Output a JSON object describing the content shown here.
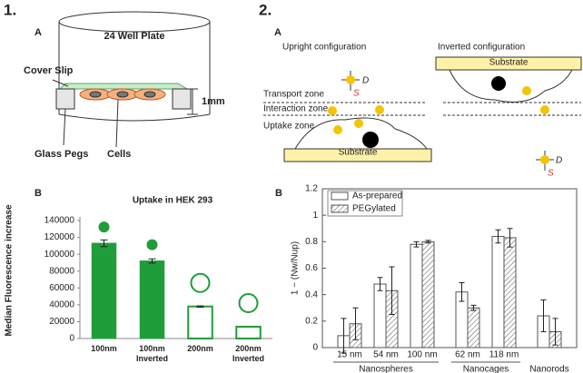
{
  "panel1": {
    "label": "1.",
    "A": {
      "label": "A",
      "plate": "24 Well Plate",
      "cover_slip": "Cover Slip",
      "height": "1mm",
      "pegs": "Glass Pegs",
      "cells": "Cells"
    }
  },
  "panel2": {
    "label": "2.",
    "A": {
      "label": "A",
      "upright": "Upright configuration",
      "inverted": "Inverted configuration",
      "substrate_upright": "Substrate",
      "substrate_inverted": "Substrate",
      "transport": "Transport zone",
      "interaction": "Interaction zone",
      "uptake": "Uptake zone",
      "d_upright": "D",
      "s_upright": "S",
      "d_inverted": "D",
      "s_inverted": "S"
    }
  },
  "chart_data": [
    {
      "type": "bar",
      "panel": "B",
      "title": "Uptake in HEK 293",
      "y_label": "Median Fluorescence increase",
      "categories": [
        "100nm",
        "100nm Inverted",
        "200nm",
        "200nm Inverted"
      ],
      "values": [
        113000,
        92000,
        38000,
        14000
      ],
      "errors": [
        4000,
        2500,
        800,
        null
      ],
      "color": "#1f9d3a",
      "fills": [
        "solid",
        "solid",
        "outline",
        "outline"
      ],
      "ylim": [
        0,
        140000
      ],
      "yticks": [
        0,
        20000,
        40000,
        60000,
        80000,
        100000,
        120000,
        140000
      ]
    },
    {
      "type": "grouped_bar",
      "panel": "B",
      "y_label": "1 − (Nw/Nup)",
      "groups": [
        {
          "name": "Nanospheres",
          "categories": [
            "15 nm",
            "54 nm",
            "100 nm"
          ]
        },
        {
          "name": "Nanocages",
          "categories": [
            "62 nm",
            "118 nm"
          ]
        },
        {
          "name": "Nanorods",
          "categories": [
            null
          ]
        }
      ],
      "series": [
        {
          "name": "As-prepared",
          "color": "#555555",
          "fill": "plain",
          "values": [
            0.09,
            0.48,
            0.78,
            0.42,
            0.84,
            0.24
          ],
          "errors": [
            0.13,
            0.05,
            0.02,
            0.07,
            0.05,
            0.12
          ]
        },
        {
          "name": "PEGylated",
          "color": "#555555",
          "fill": "hatched",
          "values": [
            0.18,
            0.43,
            0.8,
            0.3,
            0.83,
            0.12
          ],
          "errors": [
            0.12,
            0.18,
            0.01,
            0.02,
            0.07,
            0.1
          ]
        }
      ],
      "ylim": [
        0,
        1.2
      ],
      "yticks": [
        0,
        0.2,
        0.4,
        0.6,
        0.8,
        1,
        1.2
      ],
      "legend": "upper-left"
    }
  ]
}
